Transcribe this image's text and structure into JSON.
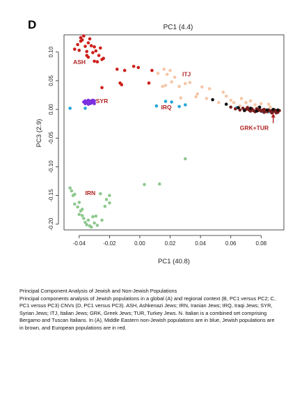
{
  "panel_label": "D",
  "caption": {
    "title": "Principal Component Analysis of Jewish and Non-Jewish Populations",
    "body": "Principal components analysis of Jewish populations in a global (A) and regional context (B, PC1 versus PC2; C, PC1 versus PC3) CNVs (D, PC1 versus PC3). ASH, Ashkenazi Jews; IRN, Iranian Jews; IRQ, Iraqi Jews; SYR, Syrian Jews; ITJ, Italian Jews; GRK, Greek Jews; TUR, Turkey Jews. N. Italian is a combined set comprising Bergamo and Tuscan Italians. In (A), Middle Eastern non-Jewish populations are in blue, Jewish populations are in brown, and European populations are in red."
  },
  "chart_data": {
    "type": "scatter",
    "title": "PC1 (4.4)",
    "xlabel": "PC1 (40.8)",
    "ylabel": "PC3 (2.9)",
    "xlim": [
      -0.05,
      0.095
    ],
    "ylim": [
      -0.21,
      0.13
    ],
    "x_ticks": [
      "-0.04",
      "-0.02",
      "0.00",
      "0.02",
      "0.04",
      "0.06",
      "0.08"
    ],
    "x_tick_values": [
      -0.04,
      -0.02,
      0.0,
      0.02,
      0.04,
      0.06,
      0.08
    ],
    "y_ticks": [
      "0.10",
      "0.05",
      "0.00",
      "-0.05",
      "-0.10",
      "-0.15",
      "-0.20"
    ],
    "y_tick_values": [
      0.1,
      0.05,
      0.0,
      -0.05,
      -0.1,
      -0.15,
      -0.2
    ],
    "grid": false,
    "legend": "none",
    "labels": [
      {
        "text": "ASH",
        "x": -0.044,
        "y": 0.079,
        "color": "#b22222"
      },
      {
        "text": "SYR",
        "x": -0.029,
        "y": 0.011,
        "color": "#b22222"
      },
      {
        "text": "ITJ",
        "x": 0.028,
        "y": 0.058,
        "color": "#b22222"
      },
      {
        "text": "IRQ",
        "x": 0.014,
        "y": 0.0,
        "color": "#b22222"
      },
      {
        "text": "IRN",
        "x": -0.036,
        "y": -0.149,
        "color": "#b22222"
      },
      {
        "text": "GRK+TUR",
        "x": 0.066,
        "y": -0.036,
        "color": "#b22222"
      }
    ],
    "annotations": [
      {
        "type": "arrow",
        "from": [
          0.088,
          -0.024
        ],
        "to": [
          0.088,
          -0.008
        ],
        "color": "#b22222"
      }
    ],
    "series": [
      {
        "label": "ASH",
        "color": "#cc1f1a",
        "points": [
          [
            -0.043,
            0.105
          ],
          [
            -0.041,
            0.113
          ],
          [
            -0.04,
            0.103
          ],
          [
            -0.039,
            0.119
          ],
          [
            -0.039,
            0.125
          ],
          [
            -0.038,
            0.121
          ],
          [
            -0.037,
            0.128
          ],
          [
            -0.036,
            0.11
          ],
          [
            -0.035,
            0.101
          ],
          [
            -0.035,
            0.094
          ],
          [
            -0.034,
            0.116
          ],
          [
            -0.034,
            0.091
          ],
          [
            -0.033,
            0.123
          ],
          [
            -0.032,
            0.111
          ],
          [
            -0.031,
            0.099
          ],
          [
            -0.03,
            0.109
          ],
          [
            -0.03,
            0.084
          ],
          [
            -0.029,
            0.102
          ],
          [
            -0.028,
            0.083
          ],
          [
            -0.027,
            0.094
          ],
          [
            -0.026,
            0.107
          ],
          [
            -0.025,
            0.087
          ],
          [
            -0.024,
            0.089
          ],
          [
            -0.025,
            0.038
          ],
          [
            -0.015,
            0.07
          ],
          [
            -0.013,
            0.046
          ],
          [
            -0.012,
            0.043
          ],
          [
            -0.01,
            0.068
          ],
          [
            -0.004,
            0.075
          ],
          [
            -0.001,
            0.073
          ],
          [
            0.008,
            0.068
          ],
          [
            0.006,
            0.046
          ]
        ]
      },
      {
        "label": "SYR",
        "color": "#7b2fe0",
        "points": [
          [
            -0.037,
            0.013
          ],
          [
            -0.036,
            0.015
          ],
          [
            -0.035,
            0.012
          ],
          [
            -0.034,
            0.016
          ],
          [
            -0.034,
            0.009
          ],
          [
            -0.033,
            0.014
          ],
          [
            -0.032,
            0.011
          ],
          [
            -0.031,
            0.016
          ],
          [
            -0.031,
            0.013
          ],
          [
            -0.03,
            0.015
          ],
          [
            -0.036,
            0.01
          ],
          [
            -0.033,
            0.01
          ],
          [
            -0.03,
            0.01
          ],
          [
            -0.032,
            0.015
          ]
        ]
      },
      {
        "label": "ITJ",
        "color": "#f5c7a8",
        "points": [
          [
            0.012,
            0.063
          ],
          [
            0.016,
            0.07
          ],
          [
            0.018,
            0.061
          ],
          [
            0.02,
            0.068
          ],
          [
            0.021,
            0.048
          ],
          [
            0.023,
            0.056
          ],
          [
            0.015,
            0.04
          ],
          [
            0.017,
            0.042
          ],
          [
            0.026,
            0.04
          ],
          [
            0.03,
            0.045
          ],
          [
            0.033,
            0.047
          ],
          [
            0.041,
            0.039
          ],
          [
            0.046,
            0.036
          ],
          [
            0.037,
            0.022
          ],
          [
            0.044,
            0.019
          ],
          [
            0.027,
            0.02
          ],
          [
            0.055,
            0.03
          ],
          [
            0.057,
            0.023
          ],
          [
            0.062,
            0.012
          ],
          [
            0.06,
            0.016
          ],
          [
            0.066,
            0.006
          ],
          [
            0.073,
            0.015
          ],
          [
            0.076,
            0.008
          ],
          [
            0.07,
            0.012
          ],
          [
            0.08,
            0.01
          ],
          [
            0.067,
            0.019
          ],
          [
            0.052,
            0.012
          ],
          [
            0.038,
            0.027
          ],
          [
            0.086,
            0.004
          ],
          [
            0.085,
            0.009
          ],
          [
            0.078,
            0.003
          ],
          [
            0.071,
            0.004
          ]
        ]
      },
      {
        "label": "IRQ",
        "color": "#26a6d9",
        "points": [
          [
            -0.046,
            0.002
          ],
          [
            -0.036,
            0.002
          ],
          [
            0.011,
            0.006
          ],
          [
            0.017,
            0.014
          ],
          [
            0.021,
            0.013
          ],
          [
            0.03,
            0.008
          ],
          [
            0.026,
            0.005
          ],
          [
            0.064,
            0.003
          ],
          [
            0.068,
            0.002
          ],
          [
            0.078,
            -0.001
          ],
          [
            0.081,
            -0.004
          ],
          [
            0.085,
            -0.004
          ],
          [
            0.089,
            -0.003
          ],
          [
            0.083,
            -0.003
          ]
        ]
      },
      {
        "label": "GRK+TUR",
        "color": "#7a1d1d",
        "points": [
          [
            0.06,
            0.004
          ],
          [
            0.063,
            0.001
          ],
          [
            0.066,
            -0.001
          ],
          [
            0.068,
            0.002
          ],
          [
            0.07,
            0.0
          ],
          [
            0.072,
            -0.001
          ],
          [
            0.074,
            0.001
          ],
          [
            0.075,
            -0.002
          ],
          [
            0.077,
            0.001
          ],
          [
            0.078,
            -0.002
          ],
          [
            0.079,
            0.0
          ],
          [
            0.08,
            -0.003
          ],
          [
            0.081,
            -0.001
          ],
          [
            0.082,
            0.0
          ],
          [
            0.083,
            -0.002
          ],
          [
            0.084,
            -0.004
          ],
          [
            0.085,
            -0.001
          ],
          [
            0.086,
            -0.003
          ],
          [
            0.087,
            -0.002
          ],
          [
            0.088,
            -0.004
          ],
          [
            0.089,
            -0.001
          ],
          [
            0.09,
            -0.003
          ],
          [
            0.091,
            -0.005
          ],
          [
            0.092,
            -0.002
          ],
          [
            0.076,
            -0.004
          ],
          [
            0.073,
            -0.003
          ],
          [
            0.071,
            0.003
          ],
          [
            0.082,
            -0.005
          ],
          [
            0.087,
            -0.006
          ],
          [
            0.09,
            -0.006
          ]
        ]
      },
      {
        "label": "black",
        "color": "#111111",
        "points": [
          [
            0.048,
            0.017
          ],
          [
            0.057,
            0.009
          ],
          [
            0.065,
            0.003
          ],
          [
            0.073,
            0.002
          ],
          [
            0.079,
            0.004
          ],
          [
            0.084,
            -0.001
          ],
          [
            0.088,
            0.0
          ],
          [
            0.091,
            -0.001
          ],
          [
            0.077,
            -0.003
          ],
          [
            0.069,
            -0.002
          ]
        ]
      },
      {
        "label": "IRN",
        "color": "#8fc88f",
        "points": [
          [
            -0.046,
            -0.137
          ],
          [
            -0.045,
            -0.142
          ],
          [
            -0.044,
            -0.15
          ],
          [
            -0.043,
            -0.165
          ],
          [
            -0.041,
            -0.17
          ],
          [
            -0.04,
            -0.183
          ],
          [
            -0.039,
            -0.177
          ],
          [
            -0.038,
            -0.185
          ],
          [
            -0.037,
            -0.19
          ],
          [
            -0.036,
            -0.197
          ],
          [
            -0.035,
            -0.201
          ],
          [
            -0.034,
            -0.193
          ],
          [
            -0.032,
            -0.205
          ],
          [
            -0.031,
            -0.187
          ],
          [
            -0.03,
            -0.198
          ],
          [
            -0.029,
            -0.186
          ],
          [
            -0.028,
            -0.202
          ],
          [
            -0.026,
            -0.147
          ],
          [
            -0.025,
            -0.193
          ],
          [
            -0.023,
            -0.169
          ],
          [
            -0.022,
            -0.157
          ],
          [
            -0.02,
            -0.15
          ],
          [
            -0.02,
            -0.163
          ],
          [
            -0.043,
            -0.148
          ],
          [
            -0.038,
            -0.174
          ],
          [
            -0.033,
            -0.203
          ],
          [
            0.003,
            -0.131
          ],
          [
            0.013,
            -0.13
          ],
          [
            0.03,
            -0.086
          ],
          [
            -0.04,
            -0.162
          ]
        ]
      }
    ]
  }
}
